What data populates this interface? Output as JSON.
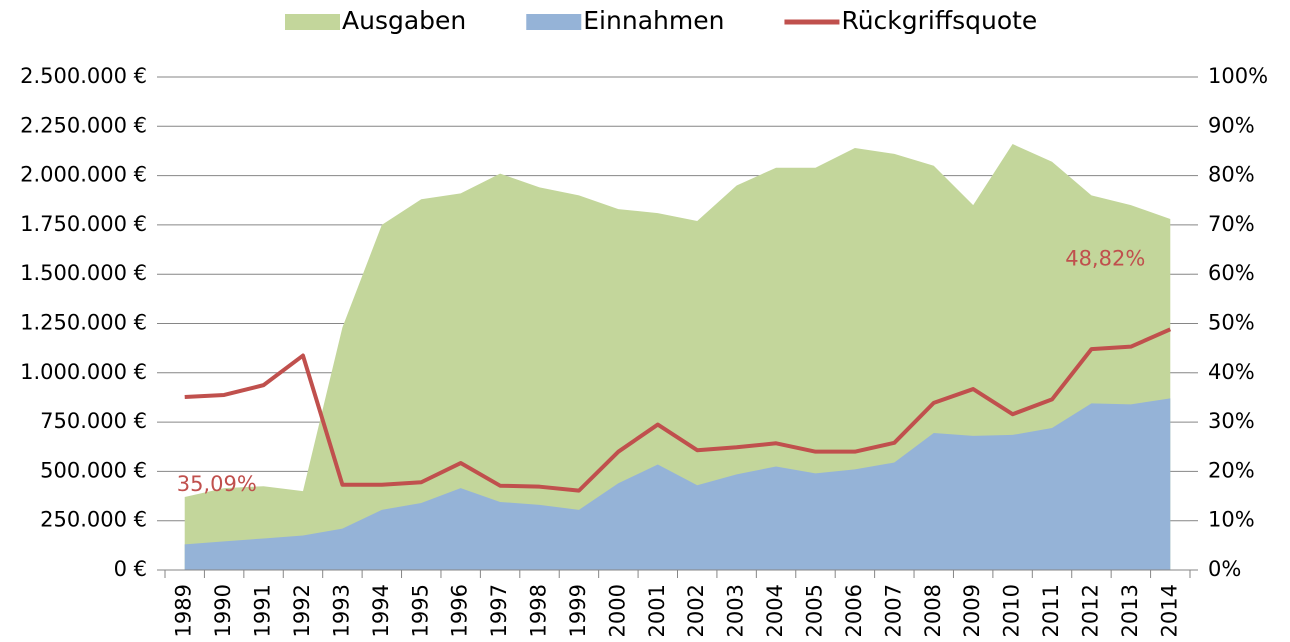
{
  "chart_data": {
    "type": "area-line",
    "categories": [
      "1989",
      "1990",
      "1991",
      "1992",
      "1993",
      "1994",
      "1995",
      "1996",
      "1997",
      "1998",
      "1999",
      "2000",
      "2001",
      "2002",
      "2003",
      "2004",
      "2005",
      "2006",
      "2007",
      "2008",
      "2009",
      "2010",
      "2011",
      "2012",
      "2013",
      "2014"
    ],
    "series": [
      {
        "name": "Ausgaben",
        "type": "area",
        "color": "#c3d69b",
        "values": [
          370000,
          415000,
          425000,
          400000,
          1230000,
          1750000,
          1880000,
          1910000,
          2010000,
          1940000,
          1900000,
          1830000,
          1810000,
          1770000,
          1950000,
          2040000,
          2040000,
          2140000,
          2110000,
          2050000,
          1850000,
          2160000,
          2070000,
          1900000,
          1850000,
          1780000
        ]
      },
      {
        "name": "Einnahmen",
        "type": "area",
        "color": "#95b3d7",
        "values": [
          130000,
          145000,
          160000,
          175000,
          210000,
          305000,
          340000,
          415000,
          345000,
          330000,
          305000,
          440000,
          535000,
          430000,
          485000,
          525000,
          490000,
          510000,
          545000,
          695000,
          680000,
          685000,
          720000,
          845000,
          840000,
          870000
        ]
      },
      {
        "name": "Rückgriffsquote",
        "type": "line",
        "axis": "y2",
        "color": "#c0504d",
        "values": [
          35.09,
          35.5,
          37.5,
          43.5,
          17.3,
          17.3,
          17.8,
          21.7,
          17.1,
          16.9,
          16.1,
          24,
          29.5,
          24.3,
          24.9,
          25.7,
          24,
          24,
          25.8,
          33.9,
          36.7,
          31.6,
          34.6,
          44.8,
          45.3,
          48.82
        ],
        "value_labels": [
          "35,09%",
          null,
          null,
          null,
          null,
          null,
          null,
          null,
          null,
          null,
          null,
          null,
          null,
          null,
          null,
          null,
          null,
          null,
          null,
          null,
          null,
          null,
          null,
          null,
          null,
          "48,82%"
        ]
      }
    ],
    "ylim": [
      0,
      2500000
    ],
    "yticks": [
      {
        "value": 0,
        "label": "0 €"
      },
      {
        "value": 250000,
        "label": "250.000 €"
      },
      {
        "value": 500000,
        "label": "500.000 €"
      },
      {
        "value": 750000,
        "label": "750.000 €"
      },
      {
        "value": 1000000,
        "label": "1.000.000 €"
      },
      {
        "value": 1250000,
        "label": "1.250.000 €"
      },
      {
        "value": 1500000,
        "label": "1.500.000 €"
      },
      {
        "value": 1750000,
        "label": "1.750.000 €"
      },
      {
        "value": 2000000,
        "label": "2.000.000 €"
      },
      {
        "value": 2250000,
        "label": "2.250.000 €"
      },
      {
        "value": 2500000,
        "label": "2.500.000 €"
      }
    ],
    "y2lim": [
      0,
      100
    ],
    "y2ticks": [
      {
        "value": 0,
        "label": "0%"
      },
      {
        "value": 10,
        "label": "10%"
      },
      {
        "value": 20,
        "label": "20%"
      },
      {
        "value": 30,
        "label": "30%"
      },
      {
        "value": 40,
        "label": "40%"
      },
      {
        "value": 50,
        "label": "50%"
      },
      {
        "value": 60,
        "label": "60%"
      },
      {
        "value": 70,
        "label": "70%"
      },
      {
        "value": 80,
        "label": "80%"
      },
      {
        "value": 90,
        "label": "90%"
      },
      {
        "value": 100,
        "label": "100%"
      }
    ],
    "grid": true,
    "legend": "top"
  }
}
